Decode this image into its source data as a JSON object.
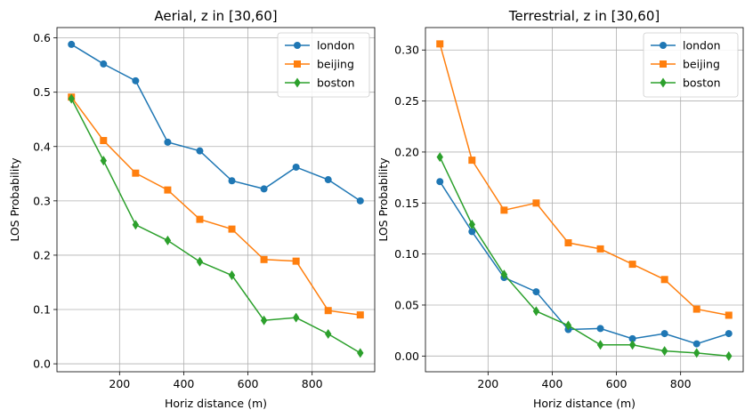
{
  "chart_data": [
    {
      "type": "line",
      "title": "Aerial, z in [30,60]",
      "xlabel": "Horiz distance (m)",
      "ylabel": "LOS Probability",
      "x": [
        50,
        150,
        250,
        350,
        450,
        550,
        650,
        750,
        850,
        950
      ],
      "xlim": [
        5,
        995
      ],
      "ylim": [
        -0.0146,
        0.619
      ],
      "xticks": [
        200,
        400,
        600,
        800
      ],
      "xtick_labels": [
        "200",
        "400",
        "600",
        "800"
      ],
      "yticks": [
        0.0,
        0.1,
        0.2,
        0.3,
        0.4,
        0.5,
        0.6
      ],
      "ytick_labels": [
        "0.0",
        "0.1",
        "0.2",
        "0.3",
        "0.4",
        "0.5",
        "0.6"
      ],
      "grid": true,
      "legend": "top-right",
      "series": [
        {
          "name": "london",
          "color": "#1f77b4",
          "marker": "circle",
          "values": [
            0.588,
            0.552,
            0.521,
            0.408,
            0.392,
            0.337,
            0.322,
            0.362,
            0.339,
            0.3
          ]
        },
        {
          "name": "beijing",
          "color": "#ff7f0e",
          "marker": "square",
          "values": [
            0.491,
            0.411,
            0.351,
            0.32,
            0.266,
            0.248,
            0.192,
            0.189,
            0.098,
            0.09
          ]
        },
        {
          "name": "boston",
          "color": "#2ca02c",
          "marker": "diamond",
          "values": [
            0.488,
            0.374,
            0.256,
            0.227,
            0.188,
            0.163,
            0.08,
            0.085,
            0.055,
            0.02
          ]
        }
      ]
    },
    {
      "type": "line",
      "title": "Terrestrial, z in [30,60]",
      "xlabel": "Horiz distance (m)",
      "ylabel": "LOS Probability",
      "x": [
        50,
        150,
        250,
        350,
        450,
        550,
        650,
        750,
        850,
        950
      ],
      "xlim": [
        5,
        995
      ],
      "ylim": [
        -0.0154,
        0.322
      ],
      "xticks": [
        200,
        400,
        600,
        800
      ],
      "xtick_labels": [
        "200",
        "400",
        "600",
        "800"
      ],
      "yticks": [
        0.0,
        0.05,
        0.1,
        0.15,
        0.2,
        0.25,
        0.3
      ],
      "ytick_labels": [
        "0.00",
        "0.05",
        "0.10",
        "0.15",
        "0.20",
        "0.25",
        "0.30"
      ],
      "grid": true,
      "legend": "top-right",
      "series": [
        {
          "name": "london",
          "color": "#1f77b4",
          "marker": "circle",
          "values": [
            0.171,
            0.122,
            0.077,
            0.063,
            0.026,
            0.027,
            0.017,
            0.022,
            0.012,
            0.022
          ]
        },
        {
          "name": "beijing",
          "color": "#ff7f0e",
          "marker": "square",
          "values": [
            0.306,
            0.192,
            0.143,
            0.15,
            0.111,
            0.105,
            0.09,
            0.075,
            0.046,
            0.04
          ]
        },
        {
          "name": "boston",
          "color": "#2ca02c",
          "marker": "diamond",
          "values": [
            0.195,
            0.129,
            0.08,
            0.044,
            0.03,
            0.011,
            0.011,
            0.005,
            0.003,
            0.0
          ]
        }
      ]
    }
  ]
}
